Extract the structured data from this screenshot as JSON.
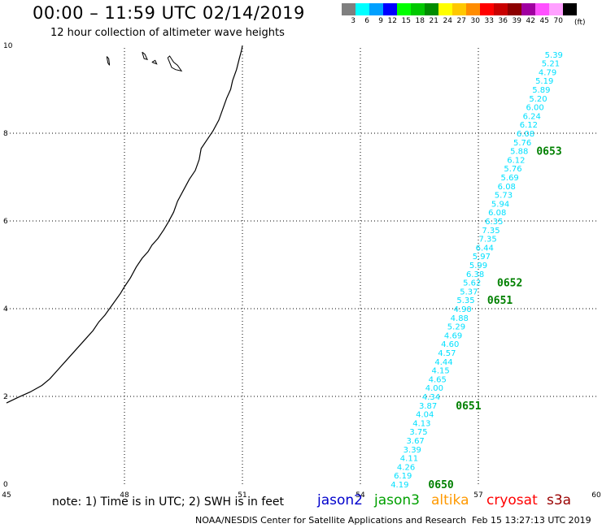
{
  "header": {
    "title": "00:00 – 11:59 UTC 02/14/2019",
    "subtitle": "12 hour collection of altimeter wave heights"
  },
  "color_scale": {
    "unit": "(ft)",
    "swatches": [
      {
        "color": "#7f7f7f",
        "label": "3"
      },
      {
        "color": "#00ffff",
        "label": "6"
      },
      {
        "color": "#00a0ff",
        "label": "9"
      },
      {
        "color": "#0000ff",
        "label": "12"
      },
      {
        "color": "#00ff00",
        "label": "15"
      },
      {
        "color": "#00c800",
        "label": "18"
      },
      {
        "color": "#008c00",
        "label": "21"
      },
      {
        "color": "#ffff00",
        "label": "24"
      },
      {
        "color": "#ffc800",
        "label": "27"
      },
      {
        "color": "#ff8c00",
        "label": "30"
      },
      {
        "color": "#ff0000",
        "label": "33"
      },
      {
        "color": "#c80000",
        "label": "36"
      },
      {
        "color": "#8c0000",
        "label": "39"
      },
      {
        "color": "#a000a0",
        "label": "42"
      },
      {
        "color": "#ff50ff",
        "label": "45"
      },
      {
        "color": "#ffa0ff",
        "label": "70"
      },
      {
        "color": "#000000",
        "label": ""
      }
    ]
  },
  "chart_data": {
    "type": "scatter",
    "title": "00:00 – 11:59 UTC 02/14/2019",
    "subtitle": "12 hour collection of altimeter wave heights",
    "xlim": [
      45,
      60
    ],
    "ylim": [
      0,
      10
    ],
    "x_ticks": [
      45,
      48,
      51,
      54,
      57,
      60
    ],
    "y_ticks": [
      0,
      2,
      4,
      6,
      8,
      10
    ],
    "grid": true,
    "swh_color": "#00e0ff",
    "time_color": "#008000",
    "swh_points": [
      {
        "lon": 58.92,
        "lat": 9.8,
        "v": "5.39"
      },
      {
        "lon": 58.84,
        "lat": 9.6,
        "v": "5.21"
      },
      {
        "lon": 58.76,
        "lat": 9.4,
        "v": "4.79"
      },
      {
        "lon": 58.68,
        "lat": 9.2,
        "v": "5.19"
      },
      {
        "lon": 58.6,
        "lat": 9.0,
        "v": "5.89"
      },
      {
        "lon": 58.52,
        "lat": 8.8,
        "v": "5.20"
      },
      {
        "lon": 58.44,
        "lat": 8.6,
        "v": "6.00"
      },
      {
        "lon": 58.36,
        "lat": 8.4,
        "v": "6.24"
      },
      {
        "lon": 58.28,
        "lat": 8.2,
        "v": "6.12"
      },
      {
        "lon": 58.2,
        "lat": 8.0,
        "v": "6.08"
      },
      {
        "lon": 58.12,
        "lat": 7.8,
        "v": "5.76"
      },
      {
        "lon": 58.04,
        "lat": 7.6,
        "v": "5.88"
      },
      {
        "lon": 57.96,
        "lat": 7.4,
        "v": "6.12"
      },
      {
        "lon": 57.88,
        "lat": 7.2,
        "v": "5.76"
      },
      {
        "lon": 57.8,
        "lat": 7.0,
        "v": "5.69"
      },
      {
        "lon": 57.72,
        "lat": 6.8,
        "v": "6.08"
      },
      {
        "lon": 57.64,
        "lat": 6.6,
        "v": "5.73"
      },
      {
        "lon": 57.56,
        "lat": 6.4,
        "v": "5.94"
      },
      {
        "lon": 57.48,
        "lat": 6.2,
        "v": "6.08"
      },
      {
        "lon": 57.4,
        "lat": 6.0,
        "v": "6.35"
      },
      {
        "lon": 57.32,
        "lat": 5.8,
        "v": "7.35"
      },
      {
        "lon": 57.24,
        "lat": 5.6,
        "v": "7.35"
      },
      {
        "lon": 57.16,
        "lat": 5.4,
        "v": "6.44"
      },
      {
        "lon": 57.08,
        "lat": 5.2,
        "v": "5.97"
      },
      {
        "lon": 57.0,
        "lat": 5.0,
        "v": "5.99"
      },
      {
        "lon": 56.92,
        "lat": 4.8,
        "v": "6.38"
      },
      {
        "lon": 56.84,
        "lat": 4.6,
        "v": "5.62"
      },
      {
        "lon": 56.76,
        "lat": 4.4,
        "v": "5.37"
      },
      {
        "lon": 56.68,
        "lat": 4.2,
        "v": "5.35"
      },
      {
        "lon": 56.6,
        "lat": 4.0,
        "v": "4.90"
      },
      {
        "lon": 56.52,
        "lat": 3.8,
        "v": "4.88"
      },
      {
        "lon": 56.44,
        "lat": 3.6,
        "v": "5.29"
      },
      {
        "lon": 56.36,
        "lat": 3.4,
        "v": "4.69"
      },
      {
        "lon": 56.28,
        "lat": 3.2,
        "v": "4.60"
      },
      {
        "lon": 56.2,
        "lat": 3.0,
        "v": "4.57"
      },
      {
        "lon": 56.12,
        "lat": 2.8,
        "v": "4.44"
      },
      {
        "lon": 56.04,
        "lat": 2.6,
        "v": "4.15"
      },
      {
        "lon": 55.96,
        "lat": 2.4,
        "v": "4.65"
      },
      {
        "lon": 55.88,
        "lat": 2.2,
        "v": "4.00"
      },
      {
        "lon": 55.8,
        "lat": 2.0,
        "v": "4.34"
      },
      {
        "lon": 55.72,
        "lat": 1.8,
        "v": "3.87"
      },
      {
        "lon": 55.64,
        "lat": 1.6,
        "v": "4.04"
      },
      {
        "lon": 55.56,
        "lat": 1.4,
        "v": "4.13"
      },
      {
        "lon": 55.48,
        "lat": 1.2,
        "v": "3.75"
      },
      {
        "lon": 55.4,
        "lat": 1.0,
        "v": "3.67"
      },
      {
        "lon": 55.32,
        "lat": 0.8,
        "v": "3.39"
      },
      {
        "lon": 55.24,
        "lat": 0.6,
        "v": "4.11"
      },
      {
        "lon": 55.16,
        "lat": 0.4,
        "v": "4.26"
      },
      {
        "lon": 55.08,
        "lat": 0.2,
        "v": "6.19"
      },
      {
        "lon": 55.0,
        "lat": 0.0,
        "v": "4.19"
      }
    ],
    "time_labels": [
      {
        "lon": 58.8,
        "lat": 7.6,
        "v": "0653"
      },
      {
        "lon": 57.8,
        "lat": 4.6,
        "v": "0652"
      },
      {
        "lon": 57.55,
        "lat": 4.2,
        "v": "0651"
      },
      {
        "lon": 56.75,
        "lat": 1.8,
        "v": "0651"
      },
      {
        "lon": 56.05,
        "lat": 0.0,
        "v": "0650"
      }
    ],
    "coastline": [
      [
        45.0,
        1.85
      ],
      [
        45.3,
        1.98
      ],
      [
        45.6,
        2.1
      ],
      [
        45.9,
        2.25
      ],
      [
        46.1,
        2.4
      ],
      [
        46.3,
        2.6
      ],
      [
        46.5,
        2.8
      ],
      [
        46.75,
        3.05
      ],
      [
        47.0,
        3.3
      ],
      [
        47.2,
        3.5
      ],
      [
        47.35,
        3.7
      ],
      [
        47.5,
        3.85
      ],
      [
        47.7,
        4.1
      ],
      [
        47.9,
        4.35
      ],
      [
        48.0,
        4.5
      ],
      [
        48.15,
        4.7
      ],
      [
        48.3,
        4.95
      ],
      [
        48.45,
        5.15
      ],
      [
        48.6,
        5.3
      ],
      [
        48.7,
        5.45
      ],
      [
        48.85,
        5.6
      ],
      [
        49.0,
        5.8
      ],
      [
        49.1,
        5.95
      ],
      [
        49.25,
        6.2
      ],
      [
        49.35,
        6.45
      ],
      [
        49.5,
        6.7
      ],
      [
        49.65,
        6.95
      ],
      [
        49.8,
        7.15
      ],
      [
        49.9,
        7.4
      ],
      [
        49.95,
        7.65
      ],
      [
        50.1,
        7.85
      ],
      [
        50.25,
        8.05
      ],
      [
        50.4,
        8.3
      ],
      [
        50.5,
        8.55
      ],
      [
        50.6,
        8.8
      ],
      [
        50.7,
        9.0
      ],
      [
        50.75,
        9.2
      ],
      [
        50.85,
        9.45
      ],
      [
        50.92,
        9.7
      ],
      [
        50.98,
        9.9
      ],
      [
        51.0,
        10.0
      ]
    ],
    "islands": [
      [
        [
          47.55,
          9.75
        ],
        [
          47.58,
          9.6
        ],
        [
          47.62,
          9.55
        ],
        [
          47.6,
          9.7
        ],
        [
          47.55,
          9.75
        ]
      ],
      [
        [
          48.45,
          9.85
        ],
        [
          48.5,
          9.7
        ],
        [
          48.58,
          9.68
        ],
        [
          48.52,
          9.8
        ],
        [
          48.45,
          9.85
        ]
      ],
      [
        [
          48.7,
          9.62
        ],
        [
          48.82,
          9.58
        ],
        [
          48.78,
          9.66
        ],
        [
          48.7,
          9.62
        ]
      ],
      [
        [
          49.1,
          9.72
        ],
        [
          49.2,
          9.5
        ],
        [
          49.3,
          9.45
        ],
        [
          49.45,
          9.42
        ],
        [
          49.35,
          9.55
        ],
        [
          49.25,
          9.62
        ],
        [
          49.15,
          9.76
        ],
        [
          49.1,
          9.72
        ]
      ]
    ]
  },
  "note": {
    "text": "note:  1) Time is in UTC;  2) SWH is in feet"
  },
  "legend": [
    {
      "label": "jason2",
      "color": "#0000cc"
    },
    {
      "label": "jason3",
      "color": "#00a000"
    },
    {
      "label": "altika",
      "color": "#ff9900"
    },
    {
      "label": "cryosat",
      "color": "#ff0000"
    },
    {
      "label": "s3a",
      "color": "#990000"
    }
  ],
  "footer": {
    "center": "NOAA/NESDIS Center for Satellite Applications and Research",
    "right": "Feb 15 13:27:13 UTC 2019"
  }
}
